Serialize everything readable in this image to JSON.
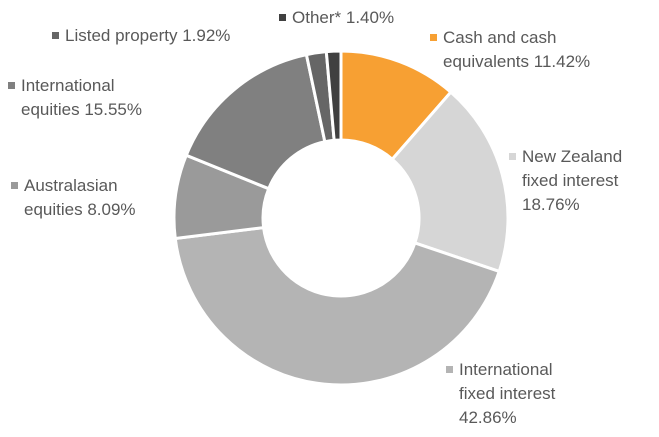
{
  "chart_data": {
    "type": "donut",
    "categories": [
      "Cash and cash equivalents",
      "New Zealand fixed interest",
      "International fixed interest",
      "Australasian equities",
      "International equities",
      "Listed property",
      "Other*"
    ],
    "values": [
      11.42,
      18.76,
      42.86,
      8.09,
      15.55,
      1.92,
      1.4
    ],
    "value_labels": [
      "11.42%",
      "18.76%",
      "42.86%",
      "8.09%",
      "15.55%",
      "1.92%",
      "1.40%"
    ],
    "colors": [
      "#f7a033",
      "#d6d6d6",
      "#b4b4b4",
      "#9a9a9a",
      "#808080",
      "#666666",
      "#404040"
    ]
  }
}
